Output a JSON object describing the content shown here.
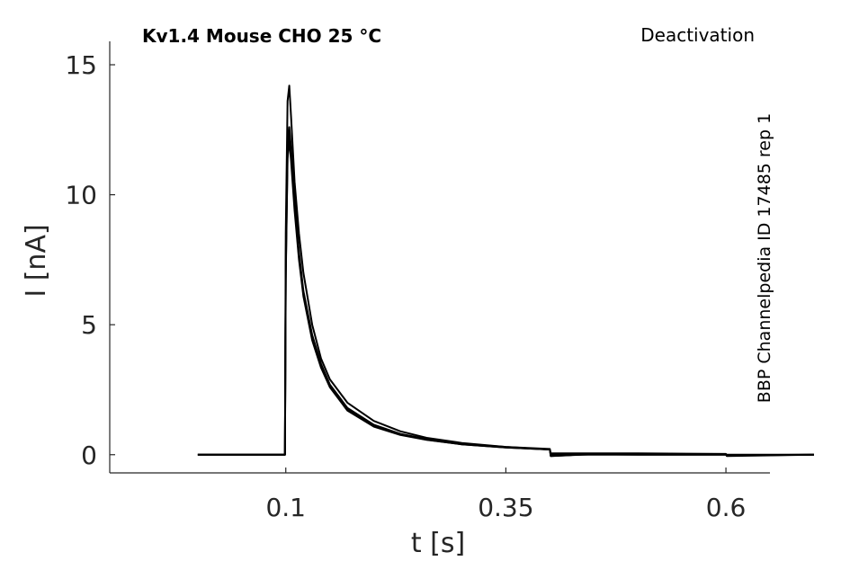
{
  "chart_data": {
    "type": "line",
    "title": "Kv1.4  Mouse  CHO  25 °C",
    "annotation": "Deactivation",
    "side_label": "BBP Channelpedia ID 17485 rep 1",
    "xlabel": "t [s]",
    "ylabel": "I [nA]",
    "xlim": [
      -0.1,
      0.65
    ],
    "ylim": [
      -0.7,
      15.9
    ],
    "x_ticks": [
      0.1,
      0.35,
      0.6
    ],
    "x_tick_labels": [
      "0.1",
      "0.35",
      "0.6"
    ],
    "y_ticks": [
      0,
      5,
      10,
      15
    ],
    "y_tick_labels": [
      "0",
      "5",
      "10",
      "15"
    ],
    "grid": false,
    "line_color": "#000000",
    "series": [
      {
        "x": [
          0.0,
          0.099,
          0.1,
          0.102,
          0.104,
          0.106,
          0.11,
          0.115,
          0.12,
          0.13,
          0.14,
          0.15,
          0.17,
          0.2,
          0.23,
          0.26,
          0.3,
          0.35,
          0.4,
          0.401,
          0.45,
          0.5,
          0.6,
          0.601,
          0.7
        ],
        "y": [
          0.0,
          0.0,
          8.5,
          13.6,
          14.2,
          13.0,
          10.5,
          8.5,
          7.0,
          5.0,
          3.7,
          2.9,
          2.0,
          1.3,
          0.9,
          0.65,
          0.45,
          0.3,
          0.2,
          0.05,
          0.05,
          0.05,
          0.03,
          0.0,
          0.0
        ]
      },
      {
        "x": [
          0.0,
          0.099,
          0.1,
          0.102,
          0.104,
          0.106,
          0.11,
          0.115,
          0.12,
          0.13,
          0.14,
          0.15,
          0.17,
          0.2,
          0.23,
          0.26,
          0.3,
          0.35,
          0.4,
          0.401,
          0.45,
          0.5,
          0.6,
          0.601,
          0.7
        ],
        "y": [
          0.0,
          0.0,
          7.5,
          12.2,
          12.6,
          11.8,
          9.8,
          7.8,
          6.3,
          4.6,
          3.5,
          2.7,
          1.8,
          1.15,
          0.8,
          0.6,
          0.42,
          0.3,
          0.22,
          0.0,
          0.0,
          0.0,
          0.0,
          -0.05,
          0.0
        ]
      },
      {
        "x": [
          0.0,
          0.099,
          0.1,
          0.102,
          0.104,
          0.106,
          0.11,
          0.115,
          0.12,
          0.13,
          0.14,
          0.15,
          0.17,
          0.2,
          0.23,
          0.26,
          0.3,
          0.35,
          0.4,
          0.401,
          0.45,
          0.5,
          0.6,
          0.601,
          0.7
        ],
        "y": [
          0.0,
          0.0,
          7.0,
          11.6,
          12.3,
          11.5,
          9.6,
          7.6,
          6.2,
          4.5,
          3.4,
          2.65,
          1.75,
          1.1,
          0.78,
          0.58,
          0.4,
          0.28,
          0.2,
          -0.05,
          0.02,
          0.0,
          0.0,
          -0.02,
          0.0
        ]
      },
      {
        "x": [
          0.0,
          0.099,
          0.1,
          0.102,
          0.104,
          0.106,
          0.11,
          0.115,
          0.12,
          0.13,
          0.14,
          0.15,
          0.17,
          0.2,
          0.23,
          0.26,
          0.3,
          0.35,
          0.4,
          0.401,
          0.45,
          0.5,
          0.6,
          0.601,
          0.7
        ],
        "y": [
          0.0,
          0.0,
          6.8,
          11.4,
          12.1,
          11.3,
          9.4,
          7.5,
          6.1,
          4.4,
          3.35,
          2.6,
          1.7,
          1.08,
          0.76,
          0.57,
          0.4,
          0.28,
          0.2,
          -0.05,
          0.03,
          0.02,
          0.01,
          -0.03,
          0.0
        ]
      }
    ]
  }
}
